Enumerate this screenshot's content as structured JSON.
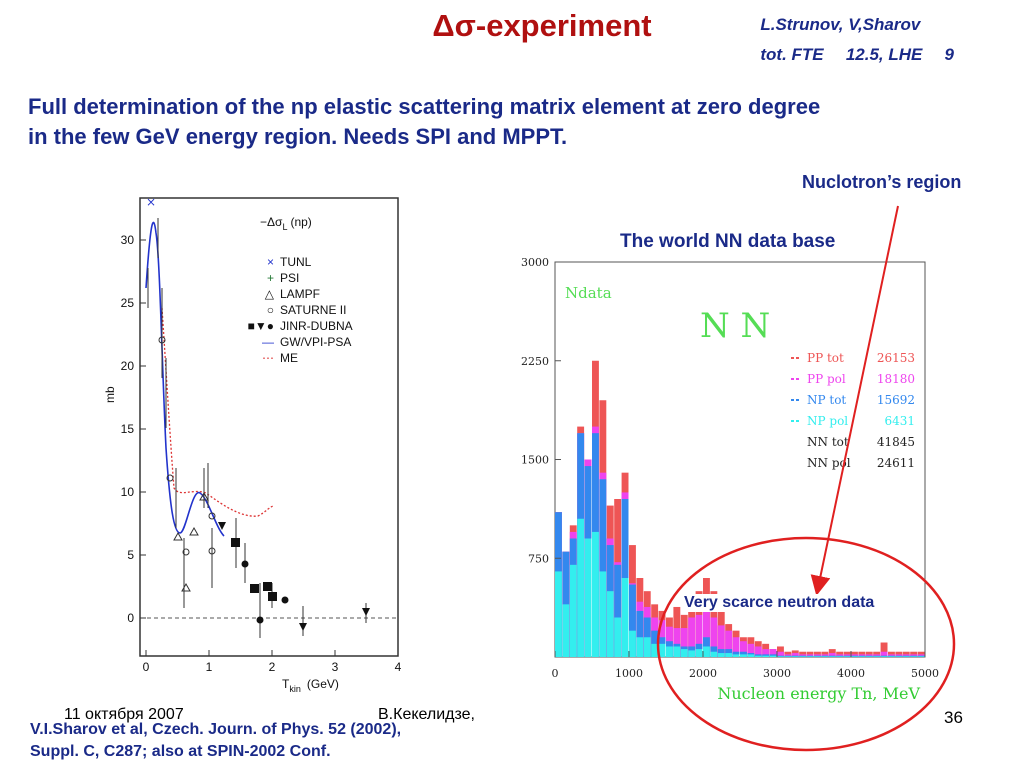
{
  "slide": {
    "title": "Δσ-experiment",
    "authors_line1": "L.Strunov, V,Sharov",
    "authors_line2": "tot. FTE \u0000 12.5, LHE \u0000 9",
    "subtitle_line1": "Full determination of the np elastic scattering matrix element at zero degree",
    "subtitle_line2": "in the few GeV energy region. Needs SPI and MPPT.",
    "nuclotron_label": "Nuclotron’s region",
    "worlddb_label": "The world NN data base",
    "scarce_label": "Very scarce neutron data",
    "footer_date": "11 октября 2007",
    "footer_author": "В.Кекелидзе,",
    "page_number": "36",
    "reference_line1": "V.I.Sharov et al, Czech. Journ. of Phys. 52 (2002),",
    "reference_line2": "Suppl. C, C287; also at SPIN-2002 Conf.",
    "colors": {
      "title": "#b01010",
      "text_blue": "#1a2a88",
      "arrow": "#e02020",
      "ellipse": "#e02020"
    }
  },
  "left_plot": {
    "ylabel": "mb",
    "xlabel_main": "T",
    "xlabel_sub": "kin",
    "xlabel_unit": "(GeV)",
    "quantity": "−Δσ",
    "quantity_sub": "L",
    "quantity_tail": "(np)",
    "xticks": [
      "0",
      "1",
      "2",
      "3",
      "4"
    ],
    "yticks": [
      "0",
      "5",
      "10",
      "15",
      "20",
      "25",
      "30"
    ],
    "legend": [
      "TUNL",
      "PSI",
      "LAMPF",
      "SATURNE II",
      "JINR-DUBNA",
      "GW/VPI-PSA",
      "ME"
    ]
  },
  "chart_data": {
    "type": "bar",
    "title": "The world NN data base",
    "label_ndata": "Ndata",
    "label_nn": "N N",
    "xlabel": "Nucleon energy  Tn, MeV",
    "xlim": [
      0,
      5000
    ],
    "ylim": [
      0,
      3000
    ],
    "xticks": [
      "0",
      "1000",
      "2000",
      "3000",
      "4000",
      "5000"
    ],
    "yticks": [
      "750",
      "1500",
      "2250",
      "3000"
    ],
    "legend": [
      {
        "label": "PP tot",
        "count": "26153",
        "color": "#ee5555"
      },
      {
        "label": "PP pol",
        "count": "18180",
        "color": "#ee44ee"
      },
      {
        "label": "NP tot",
        "count": "15692",
        "color": "#3388ee"
      },
      {
        "label": "NP pol",
        "count": "6431",
        "color": "#33eeee"
      },
      {
        "label": "NN tot",
        "count": "41845",
        "color": "#222222"
      },
      {
        "label": "NN pol",
        "count": "24611",
        "color": "#222222"
      }
    ],
    "bin_width": 100,
    "bins_start": [
      0,
      100,
      200,
      300,
      400,
      500,
      600,
      700,
      800,
      900,
      1000,
      1100,
      1200,
      1300,
      1400,
      1500,
      1600,
      1700,
      1800,
      1900,
      2000,
      2100,
      2200,
      2300,
      2400,
      2500,
      2600,
      2700,
      2800,
      2900,
      3000,
      3100,
      3200,
      3300,
      3400,
      3500,
      3600,
      3700,
      3800,
      3900,
      4000,
      4100,
      4200,
      4300,
      4400,
      4500,
      4600,
      4700,
      4800,
      4900
    ],
    "series": [
      {
        "name": "NP pol",
        "values": [
          650,
          400,
          700,
          1050,
          900,
          950,
          650,
          500,
          300,
          600,
          200,
          150,
          150,
          100,
          100,
          80,
          80,
          60,
          50,
          60,
          80,
          40,
          30,
          30,
          20,
          20,
          20,
          10,
          10,
          10,
          5,
          5,
          5,
          5,
          5,
          5,
          5,
          5,
          5,
          5,
          5,
          5,
          5,
          5,
          5,
          5,
          5,
          5,
          5,
          5
        ]
      },
      {
        "name": "NP tot",
        "values": [
          1100,
          800,
          900,
          1700,
          1450,
          1700,
          1350,
          850,
          700,
          1200,
          550,
          350,
          300,
          200,
          150,
          120,
          100,
          80,
          80,
          100,
          150,
          80,
          60,
          60,
          40,
          40,
          30,
          20,
          20,
          20,
          10,
          10,
          10,
          10,
          10,
          10,
          10,
          10,
          10,
          10,
          10,
          10,
          10,
          10,
          10,
          10,
          10,
          10,
          10,
          10
        ]
      },
      {
        "name": "PP pol",
        "values": [
          1100,
          800,
          950,
          1700,
          1500,
          1750,
          1400,
          900,
          720,
          1250,
          560,
          420,
          380,
          300,
          280,
          230,
          220,
          220,
          300,
          320,
          380,
          300,
          240,
          200,
          150,
          120,
          100,
          80,
          60,
          60,
          40,
          20,
          30,
          20,
          20,
          20,
          20,
          30,
          20,
          20,
          20,
          20,
          20,
          20,
          40,
          20,
          20,
          20,
          20,
          20
        ]
      },
      {
        "name": "PP tot",
        "values": [
          1100,
          800,
          1000,
          1750,
          1500,
          2250,
          1950,
          1150,
          1200,
          1400,
          850,
          600,
          500,
          400,
          350,
          300,
          380,
          320,
          400,
          500,
          600,
          500,
          350,
          250,
          200,
          150,
          150,
          120,
          100,
          60,
          80,
          40,
          50,
          40,
          40,
          40,
          40,
          60,
          40,
          40,
          40,
          40,
          40,
          40,
          110,
          40,
          40,
          40,
          40,
          40
        ]
      }
    ]
  }
}
